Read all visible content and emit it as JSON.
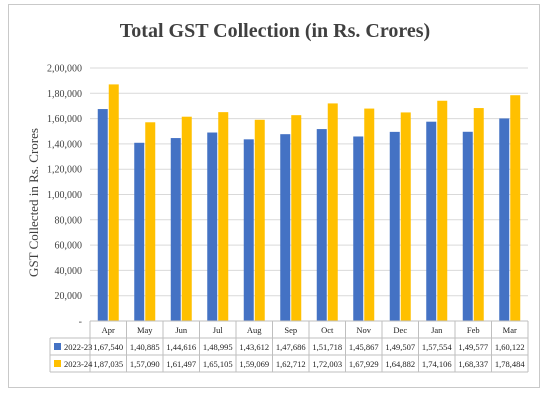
{
  "chart_data": {
    "type": "bar",
    "title": "Total GST Collection (in Rs. Crores)",
    "ylabel": "GST Collected in Rs. Crores",
    "xlabel": "",
    "ylim": [
      0,
      200000
    ],
    "yticks": [
      0,
      20000,
      40000,
      60000,
      80000,
      100000,
      120000,
      140000,
      160000,
      180000,
      200000
    ],
    "ytick_labels": [
      "-",
      "20,000",
      "40,000",
      "60,000",
      "80,000",
      "1,00,000",
      "1,20,000",
      "1,40,000",
      "1,60,000",
      "1,80,000",
      "2,00,000"
    ],
    "grid": true,
    "legend": "data-table",
    "categories": [
      "Apr",
      "May",
      "Jun",
      "Jul",
      "Aug",
      "Sep",
      "Oct",
      "Nov",
      "Dec",
      "Jan",
      "Feb",
      "Mar"
    ],
    "series": [
      {
        "name": "2022-23",
        "color": "#4472c4",
        "values": [
          167540,
          140885,
          144616,
          148995,
          143612,
          147686,
          151718,
          145867,
          149507,
          157554,
          149577,
          160122
        ],
        "labels": [
          "1,67,540",
          "1,40,885",
          "1,44,616",
          "1,48,995",
          "1,43,612",
          "1,47,686",
          "1,51,718",
          "1,45,867",
          "1,49,507",
          "1,57,554",
          "1,49,577",
          "1,60,122"
        ]
      },
      {
        "name": "2023-24",
        "color": "#ffc000",
        "values": [
          187035,
          157090,
          161497,
          165105,
          159069,
          162712,
          172003,
          167929,
          164882,
          174106,
          168337,
          178484
        ],
        "labels": [
          "1,87,035",
          "1,57,090",
          "1,61,497",
          "1,65,105",
          "1,59,069",
          "1,62,712",
          "1,72,003",
          "1,67,929",
          "1,64,882",
          "1,74,106",
          "1,68,337",
          "1,78,484"
        ]
      }
    ]
  }
}
